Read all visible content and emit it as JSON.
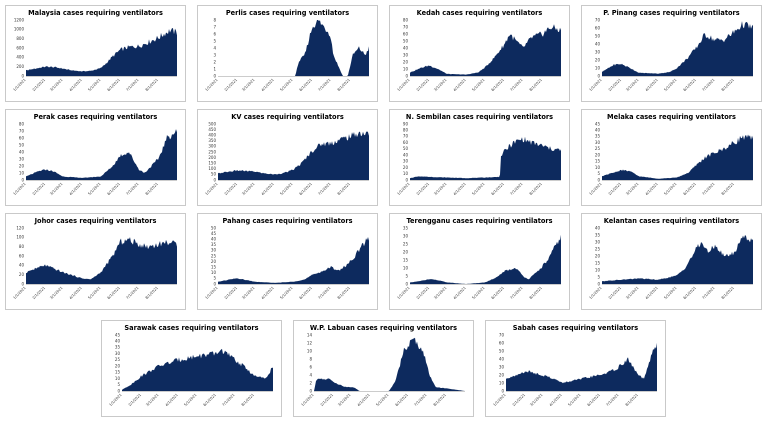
{
  "colors": {
    "area": "#0d2a5e",
    "axis": "#999999",
    "border": "#c9c9c9"
  },
  "x_tick_labels": [
    "1/1/2021",
    "2/1/2021",
    "3/1/2021",
    "4/1/2021",
    "5/1/2021",
    "6/1/2021",
    "7/1/2021",
    "8/1/2021"
  ],
  "chart_data": [
    {
      "type": "area",
      "title": "Malaysia cases requiring ventilators",
      "yticks": [
        0,
        200,
        400,
        600,
        800,
        1000,
        1200
      ],
      "ylim": [
        0,
        1200
      ],
      "x": [
        "2021-01-01",
        "2021-02-01",
        "2021-02-15",
        "2021-03-01",
        "2021-03-15",
        "2021-04-01",
        "2021-04-15",
        "2021-05-01",
        "2021-05-10",
        "2021-05-20",
        "2021-06-01",
        "2021-06-15",
        "2021-07-01",
        "2021-07-15",
        "2021-08-01",
        "2021-08-10",
        "2021-08-20",
        "2021-08-31"
      ],
      "values": [
        120,
        200,
        190,
        160,
        120,
        100,
        110,
        170,
        280,
        420,
        560,
        620,
        640,
        720,
        820,
        900,
        980,
        930
      ]
    },
    {
      "type": "area",
      "title": "Perlis cases requiring ventilators",
      "yticks": [
        0,
        1,
        2,
        3,
        4,
        5,
        6,
        7,
        8
      ],
      "ylim": [
        0,
        8
      ],
      "x": [
        "2021-01-01",
        "2021-05-05",
        "2021-05-10",
        "2021-05-20",
        "2021-06-01",
        "2021-06-10",
        "2021-06-20",
        "2021-06-30",
        "2021-07-05",
        "2021-07-20",
        "2021-07-28",
        "2021-08-05",
        "2021-08-15",
        "2021-08-25",
        "2021-08-31"
      ],
      "values": [
        0,
        0,
        2,
        3,
        7,
        8,
        7,
        6,
        3,
        0,
        0,
        3,
        4,
        3,
        4
      ]
    },
    {
      "type": "area",
      "title": "Kedah cases requiring ventilators",
      "yticks": [
        0,
        10,
        20,
        30,
        40,
        50,
        60,
        70,
        80
      ],
      "ylim": [
        0,
        80
      ],
      "x": [
        "2021-01-01",
        "2021-01-20",
        "2021-02-01",
        "2021-02-15",
        "2021-03-01",
        "2021-04-01",
        "2021-04-20",
        "2021-05-01",
        "2021-05-15",
        "2021-06-01",
        "2021-06-10",
        "2021-06-20",
        "2021-07-01",
        "2021-07-15",
        "2021-08-01",
        "2021-08-15",
        "2021-08-31"
      ],
      "values": [
        5,
        12,
        15,
        10,
        3,
        2,
        5,
        12,
        25,
        45,
        60,
        50,
        40,
        55,
        60,
        70,
        65
      ]
    },
    {
      "type": "area",
      "title": "P. Pinang cases requiring ventilators",
      "yticks": [
        0,
        10,
        20,
        30,
        40,
        50,
        60,
        70
      ],
      "ylim": [
        0,
        70
      ],
      "x": [
        "2021-01-01",
        "2021-01-20",
        "2021-02-01",
        "2021-02-15",
        "2021-03-01",
        "2021-04-01",
        "2021-04-20",
        "2021-05-01",
        "2021-05-15",
        "2021-06-01",
        "2021-06-15",
        "2021-07-01",
        "2021-07-15",
        "2021-08-01",
        "2021-08-15",
        "2021-08-31"
      ],
      "values": [
        5,
        14,
        15,
        10,
        4,
        3,
        5,
        10,
        20,
        35,
        52,
        45,
        45,
        55,
        65,
        60
      ]
    },
    {
      "type": "area",
      "title": "Perak cases requiring ventilators",
      "yticks": [
        0,
        10,
        20,
        30,
        40,
        50,
        60,
        70,
        80
      ],
      "ylim": [
        0,
        80
      ],
      "x": [
        "2021-01-01",
        "2021-01-20",
        "2021-02-01",
        "2021-02-15",
        "2021-03-01",
        "2021-04-01",
        "2021-05-01",
        "2021-05-20",
        "2021-06-01",
        "2021-06-15",
        "2021-07-01",
        "2021-07-10",
        "2021-08-01",
        "2021-08-15",
        "2021-08-31"
      ],
      "values": [
        5,
        12,
        15,
        12,
        5,
        3,
        5,
        20,
        35,
        40,
        15,
        10,
        30,
        60,
        70
      ]
    },
    {
      "type": "area",
      "title": "KV cases requiring ventilators",
      "yticks": [
        0,
        50,
        100,
        150,
        200,
        250,
        300,
        350,
        400,
        450,
        500
      ],
      "ylim": [
        0,
        500
      ],
      "x": [
        "2021-01-01",
        "2021-02-01",
        "2021-02-15",
        "2021-03-01",
        "2021-03-15",
        "2021-04-01",
        "2021-04-15",
        "2021-05-01",
        "2021-05-15",
        "2021-06-01",
        "2021-06-15",
        "2021-07-01",
        "2021-07-15",
        "2021-08-01",
        "2021-08-15",
        "2021-08-31"
      ],
      "values": [
        60,
        85,
        80,
        75,
        60,
        50,
        60,
        90,
        150,
        260,
        320,
        330,
        360,
        390,
        420,
        410
      ]
    },
    {
      "type": "area",
      "title": "N. Sembilan cases requiring ventilators",
      "yticks": [
        0,
        10,
        20,
        30,
        40,
        50,
        60,
        70,
        80,
        90
      ],
      "ylim": [
        0,
        90
      ],
      "x": [
        "2021-01-01",
        "2021-01-15",
        "2021-02-01",
        "2021-03-01",
        "2021-04-01",
        "2021-05-01",
        "2021-05-25",
        "2021-05-27",
        "2021-06-10",
        "2021-06-20",
        "2021-07-01",
        "2021-07-15",
        "2021-08-01",
        "2021-08-15",
        "2021-08-31"
      ],
      "values": [
        3,
        6,
        5,
        4,
        3,
        4,
        5,
        40,
        55,
        62,
        66,
        60,
        55,
        50,
        48
      ]
    },
    {
      "type": "area",
      "title": "Melaka cases requiring ventilators",
      "yticks": [
        0,
        5,
        10,
        15,
        20,
        25,
        30,
        35,
        40,
        45
      ],
      "ylim": [
        0,
        45
      ],
      "x": [
        "2021-01-01",
        "2021-01-20",
        "2021-02-01",
        "2021-02-15",
        "2021-03-01",
        "2021-04-01",
        "2021-05-01",
        "2021-05-20",
        "2021-06-01",
        "2021-06-15",
        "2021-07-01",
        "2021-07-15",
        "2021-08-01",
        "2021-08-15",
        "2021-08-31"
      ],
      "values": [
        3,
        6,
        8,
        7,
        3,
        1,
        2,
        6,
        12,
        18,
        22,
        25,
        30,
        35,
        33
      ]
    },
    {
      "type": "area",
      "title": "Johor cases requiring ventilators",
      "yticks": [
        0,
        20,
        40,
        60,
        80,
        100,
        120
      ],
      "ylim": [
        0,
        120
      ],
      "x": [
        "2021-01-01",
        "2021-01-20",
        "2021-02-01",
        "2021-02-20",
        "2021-03-01",
        "2021-04-01",
        "2021-04-15",
        "2021-05-01",
        "2021-05-20",
        "2021-06-01",
        "2021-06-15",
        "2021-07-01",
        "2021-07-15",
        "2021-08-01",
        "2021-08-15",
        "2021-08-31"
      ],
      "values": [
        25,
        35,
        40,
        30,
        25,
        12,
        10,
        25,
        60,
        90,
        95,
        85,
        80,
        85,
        90,
        85
      ]
    },
    {
      "type": "area",
      "title": "Pahang cases requiring ventilators",
      "yticks": [
        0,
        5,
        10,
        15,
        20,
        25,
        30,
        35,
        40,
        45,
        50
      ],
      "ylim": [
        0,
        50
      ],
      "x": [
        "2021-01-01",
        "2021-01-20",
        "2021-02-01",
        "2021-02-20",
        "2021-03-01",
        "2021-04-01",
        "2021-05-01",
        "2021-05-20",
        "2021-06-01",
        "2021-06-20",
        "2021-07-01",
        "2021-07-15",
        "2021-08-01",
        "2021-08-15",
        "2021-08-31"
      ],
      "values": [
        2,
        4,
        5,
        3,
        2,
        1,
        2,
        4,
        8,
        12,
        15,
        12,
        20,
        30,
        42
      ]
    },
    {
      "type": "area",
      "title": "Terengganu cases requiring ventilators",
      "yticks": [
        0,
        5,
        10,
        15,
        20,
        25,
        30,
        35
      ],
      "ylim": [
        0,
        35
      ],
      "x": [
        "2021-01-01",
        "2021-01-20",
        "2021-02-01",
        "2021-02-20",
        "2021-03-01",
        "2021-04-01",
        "2021-05-01",
        "2021-05-20",
        "2021-06-01",
        "2021-06-20",
        "2021-07-01",
        "2021-07-10",
        "2021-07-25",
        "2021-08-10",
        "2021-08-31"
      ],
      "values": [
        1,
        2,
        3,
        2,
        1,
        0,
        1,
        4,
        8,
        10,
        5,
        3,
        8,
        15,
        30
      ]
    },
    {
      "type": "area",
      "title": "Kelantan cases requiring ventilators",
      "yticks": [
        0,
        5,
        10,
        15,
        20,
        25,
        30,
        35,
        40
      ],
      "ylim": [
        0,
        40
      ],
      "x": [
        "2021-01-01",
        "2021-02-01",
        "2021-03-01",
        "2021-04-01",
        "2021-05-01",
        "2021-05-15",
        "2021-06-01",
        "2021-06-10",
        "2021-06-20",
        "2021-07-01",
        "2021-07-15",
        "2021-08-01",
        "2021-08-15",
        "2021-08-31"
      ],
      "values": [
        2,
        3,
        4,
        3,
        6,
        12,
        25,
        30,
        22,
        28,
        20,
        22,
        35,
        30
      ]
    },
    {
      "type": "area",
      "title": "Sarawak cases requiring ventilators",
      "yticks": [
        0,
        5,
        10,
        15,
        20,
        25,
        30,
        35,
        40,
        45
      ],
      "ylim": [
        0,
        45
      ],
      "x": [
        "2021-01-01",
        "2021-01-15",
        "2021-02-01",
        "2021-03-01",
        "2021-04-01",
        "2021-05-01",
        "2021-06-01",
        "2021-06-10",
        "2021-07-01",
        "2021-07-20",
        "2021-08-01",
        "2021-08-20",
        "2021-08-31"
      ],
      "values": [
        1,
        5,
        12,
        20,
        25,
        28,
        30,
        33,
        25,
        18,
        12,
        10,
        20
      ]
    },
    {
      "type": "area",
      "title": "W.P. Labuan cases requiring ventilators",
      "yticks": [
        0,
        2,
        4,
        6,
        8,
        10,
        12,
        14
      ],
      "ylim": [
        0,
        14
      ],
      "x": [
        "2021-01-01",
        "2021-01-05",
        "2021-01-25",
        "2021-02-05",
        "2021-02-20",
        "2021-03-05",
        "2021-03-15",
        "2021-04-01",
        "2021-05-01",
        "2021-05-10",
        "2021-05-25",
        "2021-06-10",
        "2021-06-25",
        "2021-07-05",
        "2021-07-15",
        "2021-08-31"
      ],
      "values": [
        0,
        3,
        3,
        2,
        1,
        1,
        0,
        0,
        0,
        2,
        10,
        13,
        10,
        4,
        1,
        0
      ]
    },
    {
      "type": "area",
      "title": "Sabah cases requiring ventilators",
      "yticks": [
        0,
        10,
        20,
        30,
        40,
        50,
        60,
        70
      ],
      "ylim": [
        0,
        70
      ],
      "x": [
        "2021-01-01",
        "2021-01-20",
        "2021-02-01",
        "2021-03-01",
        "2021-03-20",
        "2021-04-01",
        "2021-05-01",
        "2021-06-01",
        "2021-06-20",
        "2021-07-01",
        "2021-07-15",
        "2021-08-01",
        "2021-08-10",
        "2021-08-25",
        "2021-08-31"
      ],
      "values": [
        15,
        20,
        25,
        20,
        15,
        10,
        15,
        20,
        25,
        30,
        40,
        20,
        15,
        50,
        60
      ]
    }
  ]
}
